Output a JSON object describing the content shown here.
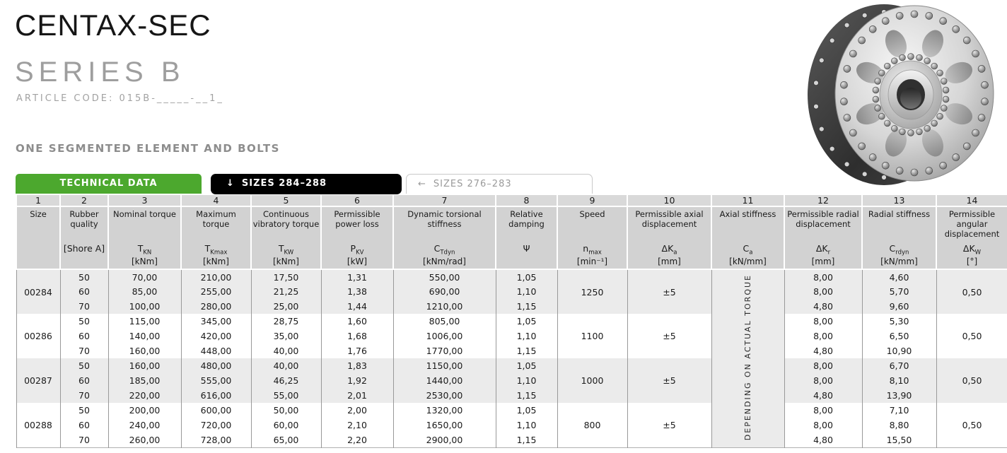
{
  "page": {
    "title": "CENTAX-SEC",
    "subtitle": "SERIES B",
    "article_code": "ARTICLE CODE: 015B-_____-__1_",
    "section_label": "ONE SEGMENTED ELEMENT AND BOLTS"
  },
  "colors": {
    "accent_green": "#4ca82e",
    "tab_black": "#000000",
    "header_gray": "#d2d2d2",
    "row_shaded": "#ebebeb"
  },
  "tabs": [
    {
      "label": "TECHNICAL DATA",
      "icon": "",
      "active": true
    },
    {
      "label": "SIZES 284–288",
      "icon": "↓",
      "active": true
    },
    {
      "label": "SIZES 276–283",
      "icon": "←",
      "active": false
    }
  ],
  "product_image": {
    "name": "coupling-photo",
    "description": "steel flexible coupling flange with bolts"
  },
  "table": {
    "column_numbers": [
      "1",
      "2",
      "3",
      "4",
      "5",
      "6",
      "7",
      "8",
      "9",
      "10",
      "11",
      "12",
      "13",
      "14"
    ],
    "columns": [
      {
        "name": "Size",
        "symbol": "",
        "sub": "",
        "unit": ""
      },
      {
        "name": "Rubber quality",
        "symbol": "[Shore A]",
        "sub": "",
        "unit": ""
      },
      {
        "name": "Nominal torque",
        "symbol": "T",
        "sub": "KN",
        "unit": "[kNm]"
      },
      {
        "name": "Maximum torque",
        "symbol": "T",
        "sub": "Kmax",
        "unit": "[kNm]"
      },
      {
        "name": "Continuous vibratory torque",
        "symbol": "T",
        "sub": "KW",
        "unit": "[kNm]"
      },
      {
        "name": "Permissible power loss",
        "symbol": "P",
        "sub": "KV",
        "unit": "[kW]"
      },
      {
        "name": "Dynamic torsional stiffness",
        "symbol": "C",
        "sub": "Tdyn",
        "unit": "[kNm/rad]"
      },
      {
        "name": "Relative damping",
        "symbol": "Ψ",
        "sub": "",
        "unit": ""
      },
      {
        "name": "Speed",
        "symbol": "n",
        "sub": "max",
        "unit": "[min⁻¹]"
      },
      {
        "name": "Permissible axial displacement",
        "symbol": "ΔK",
        "sub": "a",
        "unit": "[mm]"
      },
      {
        "name": "Axial stiffness",
        "symbol": "C",
        "sub": "a",
        "unit": "[kN/mm]"
      },
      {
        "name": "Permissible radial displacement",
        "symbol": "ΔK",
        "sub": "r",
        "unit": "[mm]"
      },
      {
        "name": "Radial stiffness",
        "symbol": "C",
        "sub": "rdyn",
        "unit": "[kN/mm]"
      },
      {
        "name": "Permissible angular displacement",
        "symbol": "ΔK",
        "sub": "W",
        "unit": "[°]"
      }
    ],
    "axial_stiffness_note": "DEPENDING ON ACTUAL TORQUE",
    "groups": [
      {
        "size": "00284",
        "speed": "1250",
        "axial_displacement": "±5",
        "angular_displacement": "0,50",
        "shaded": true,
        "rows": [
          {
            "shore_a": "50",
            "nominal_torque": "70,00",
            "maximum_torque": "210,00",
            "vibratory_torque": "17,50",
            "power_loss": "1,31",
            "torsional_stiffness": "550,00",
            "damping": "1,05",
            "radial_displacement": "8,00",
            "radial_stiffness": "4,60"
          },
          {
            "shore_a": "60",
            "nominal_torque": "85,00",
            "maximum_torque": "255,00",
            "vibratory_torque": "21,25",
            "power_loss": "1,38",
            "torsional_stiffness": "690,00",
            "damping": "1,10",
            "radial_displacement": "8,00",
            "radial_stiffness": "5,70"
          },
          {
            "shore_a": "70",
            "nominal_torque": "100,00",
            "maximum_torque": "280,00",
            "vibratory_torque": "25,00",
            "power_loss": "1,44",
            "torsional_stiffness": "1210,00",
            "damping": "1,15",
            "radial_displacement": "4,80",
            "radial_stiffness": "9,60"
          }
        ]
      },
      {
        "size": "00286",
        "speed": "1100",
        "axial_displacement": "±5",
        "angular_displacement": "0,50",
        "shaded": false,
        "rows": [
          {
            "shore_a": "50",
            "nominal_torque": "115,00",
            "maximum_torque": "345,00",
            "vibratory_torque": "28,75",
            "power_loss": "1,60",
            "torsional_stiffness": "805,00",
            "damping": "1,05",
            "radial_displacement": "8,00",
            "radial_stiffness": "5,30"
          },
          {
            "shore_a": "60",
            "nominal_torque": "140,00",
            "maximum_torque": "420,00",
            "vibratory_torque": "35,00",
            "power_loss": "1,68",
            "torsional_stiffness": "1006,00",
            "damping": "1,10",
            "radial_displacement": "8,00",
            "radial_stiffness": "6,50"
          },
          {
            "shore_a": "70",
            "nominal_torque": "160,00",
            "maximum_torque": "448,00",
            "vibratory_torque": "40,00",
            "power_loss": "1,76",
            "torsional_stiffness": "1770,00",
            "damping": "1,15",
            "radial_displacement": "4,80",
            "radial_stiffness": "10,90"
          }
        ]
      },
      {
        "size": "00287",
        "speed": "1000",
        "axial_displacement": "±5",
        "angular_displacement": "0,50",
        "shaded": true,
        "rows": [
          {
            "shore_a": "50",
            "nominal_torque": "160,00",
            "maximum_torque": "480,00",
            "vibratory_torque": "40,00",
            "power_loss": "1,83",
            "torsional_stiffness": "1150,00",
            "damping": "1,05",
            "radial_displacement": "8,00",
            "radial_stiffness": "6,70"
          },
          {
            "shore_a": "60",
            "nominal_torque": "185,00",
            "maximum_torque": "555,00",
            "vibratory_torque": "46,25",
            "power_loss": "1,92",
            "torsional_stiffness": "1440,00",
            "damping": "1,10",
            "radial_displacement": "8,00",
            "radial_stiffness": "8,10"
          },
          {
            "shore_a": "70",
            "nominal_torque": "220,00",
            "maximum_torque": "616,00",
            "vibratory_torque": "55,00",
            "power_loss": "2,01",
            "torsional_stiffness": "2530,00",
            "damping": "1,15",
            "radial_displacement": "4,80",
            "radial_stiffness": "13,90"
          }
        ]
      },
      {
        "size": "00288",
        "speed": "800",
        "axial_displacement": "±5",
        "angular_displacement": "0,50",
        "shaded": false,
        "rows": [
          {
            "shore_a": "50",
            "nominal_torque": "200,00",
            "maximum_torque": "600,00",
            "vibratory_torque": "50,00",
            "power_loss": "2,00",
            "torsional_stiffness": "1320,00",
            "damping": "1,05",
            "radial_displacement": "8,00",
            "radial_stiffness": "7,10"
          },
          {
            "shore_a": "60",
            "nominal_torque": "240,00",
            "maximum_torque": "720,00",
            "vibratory_torque": "60,00",
            "power_loss": "2,10",
            "torsional_stiffness": "1650,00",
            "damping": "1,10",
            "radial_displacement": "8,00",
            "radial_stiffness": "8,80"
          },
          {
            "shore_a": "70",
            "nominal_torque": "260,00",
            "maximum_torque": "728,00",
            "vibratory_torque": "65,00",
            "power_loss": "2,20",
            "torsional_stiffness": "2900,00",
            "damping": "1,15",
            "radial_displacement": "4,80",
            "radial_stiffness": "15,50"
          }
        ]
      }
    ]
  }
}
